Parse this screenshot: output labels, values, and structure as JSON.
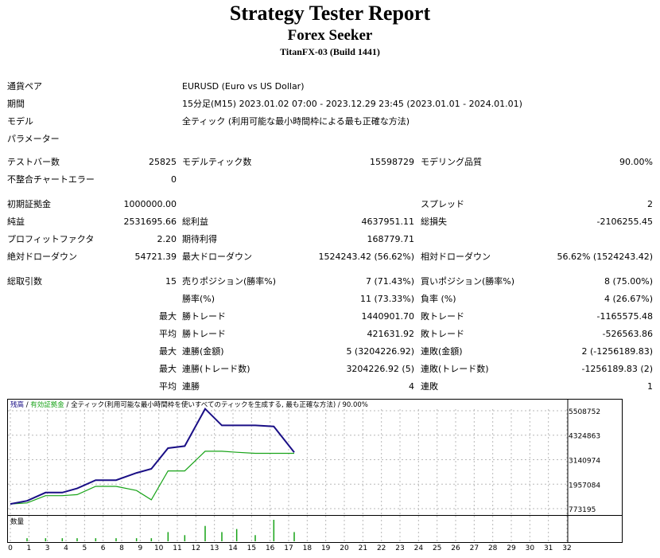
{
  "header": {
    "title": "Strategy Tester Report",
    "subtitle": "Forex Seeker",
    "server": "TitanFX-03 (Build 1441)"
  },
  "info": {
    "symbol_label": "通貨ペア",
    "symbol_value": "EURUSD (Euro vs US Dollar)",
    "period_label": "期間",
    "period_value": "15分足(M15) 2023.01.02 07:00 - 2023.12.29 23:45 (2023.01.01 - 2024.01.01)",
    "model_label": "モデル",
    "model_value": "全ティック (利用可能な最小時間枠による最も正確な方法)",
    "params_label": "パラメーター"
  },
  "stats": {
    "bars_label": "テストバー数",
    "bars_value": "25825",
    "ticks_label": "モデルティック数",
    "ticks_value": "15598729",
    "quality_label": "モデリング品質",
    "quality_value": "90.00%",
    "mismatch_label": "不整合チャートエラー",
    "mismatch_value": "0",
    "deposit_label": "初期証拠金",
    "deposit_value": "1000000.00",
    "spread_label": "スプレッド",
    "spread_value": "2",
    "net_label": "純益",
    "net_value": "2531695.66",
    "gross_profit_label": "総利益",
    "gross_profit_value": "4637951.11",
    "gross_loss_label": "総損失",
    "gross_loss_value": "-2106255.45",
    "pf_label": "プロフィットファクタ",
    "pf_value": "2.20",
    "expected_label": "期待利得",
    "expected_value": "168779.71",
    "abs_dd_label": "絶対ドローダウン",
    "abs_dd_value": "54721.39",
    "max_dd_label": "最大ドローダウン",
    "max_dd_value": "1524243.42 (56.62%)",
    "rel_dd_label": "相対ドローダウン",
    "rel_dd_value": "56.62% (1524243.42)"
  },
  "trades": {
    "total_label": "総取引数",
    "total_value": "15",
    "short_label": "売りポジション(勝率%)",
    "short_value": "7 (71.43%)",
    "long_label": "買いポジション(勝率%)",
    "long_value": "8 (75.00%)",
    "winrate_label": "勝率(%)",
    "winrate_value": "11 (73.33%)",
    "lossrate_label": "負率 (%)",
    "lossrate_value": "4 (26.67%)",
    "max1_label": "最大",
    "largest_win_label": "勝トレード",
    "largest_win_value": "1440901.70",
    "largest_loss_label": "敗トレード",
    "largest_loss_value": "-1165575.48",
    "avg1_label": "平均",
    "avg_win_label": "勝トレード",
    "avg_win_value": "421631.92",
    "avg_loss_label": "敗トレード",
    "avg_loss_value": "-526563.86",
    "max2_label": "最大",
    "cons_wins_amt_label": "連勝(金額)",
    "cons_wins_amt_value": "5 (3204226.92)",
    "cons_loss_amt_label": "連敗(金額)",
    "cons_loss_amt_value": "2 (-1256189.83)",
    "max3_label": "最大",
    "cons_wins_cnt_label": "連勝(トレード数)",
    "cons_wins_cnt_value": "3204226.92 (5)",
    "cons_loss_cnt_label": "連敗(トレード数)",
    "cons_loss_cnt_value": "-1256189.83 (2)",
    "avg2_label": "平均",
    "avg_cons_wins_label": "連勝",
    "avg_cons_wins_value": "4",
    "avg_cons_loss_label": "連敗",
    "avg_cons_loss_value": "1"
  },
  "legend": {
    "balance": "残高",
    "sep1": " / ",
    "equity": "有効証拠金",
    "sep2": " / ",
    "model": "全ティック(利用可能な最小時間枠を使いすべてのティックを生成する, 最も正確な方法)",
    "quality": " / 90.00%"
  },
  "volume_label": "数量",
  "colors": {
    "balance": "#1a0f86",
    "equity": "#17a317",
    "volume": "#17a317",
    "grid": "#b8b8b8"
  },
  "chart_data": {
    "type": "line",
    "y_ticks": [
      "5508752",
      "4324863",
      "3140974",
      "1957084",
      "773195"
    ],
    "x_ticks": [
      "0",
      "1",
      "3",
      "4",
      "5",
      "6",
      "8",
      "9",
      "10",
      "11",
      "12",
      "13",
      "14",
      "15",
      "16",
      "17",
      "18",
      "19",
      "20",
      "21",
      "22",
      "23",
      "24",
      "25",
      "26",
      "27",
      "28",
      "29",
      "30",
      "31",
      "32"
    ],
    "x_tick_positions": [
      0,
      1,
      2,
      3,
      4,
      5,
      6,
      7,
      8,
      9,
      10,
      11,
      12,
      13,
      14,
      15,
      16,
      17,
      18,
      19,
      20,
      21,
      22,
      23,
      24,
      25,
      26,
      27,
      28,
      29,
      30
    ],
    "ylim": [
      773195,
      5508752
    ],
    "series": [
      {
        "name": "残高",
        "x": [
          0,
          0.9,
          1.9,
          2.8,
          3.6,
          4.6,
          5.7,
          6.8,
          7.6,
          8.5,
          9.4,
          10.5,
          11.4,
          12.2,
          13.2,
          14.2,
          15.3
        ],
        "values": [
          1000000,
          1150000,
          1550000,
          1550000,
          1750000,
          2150000,
          2150000,
          2500000,
          2700000,
          3700000,
          3800000,
          5600000,
          4800000,
          4800000,
          4800000,
          4750000,
          3500000
        ]
      },
      {
        "name": "有効証拠金",
        "x": [
          0,
          0.9,
          1.9,
          2.8,
          3.6,
          4.6,
          5.7,
          6.8,
          7.6,
          8.5,
          9.4,
          10.5,
          11.4,
          12.2,
          13.2,
          14.2,
          15.3
        ],
        "values": [
          1000000,
          1050000,
          1400000,
          1400000,
          1450000,
          1850000,
          1850000,
          1650000,
          1200000,
          2600000,
          2600000,
          3550000,
          3550000,
          3500000,
          3450000,
          3450000,
          3450000
        ]
      }
    ],
    "volume": {
      "x": [
        0.9,
        1.9,
        2.8,
        3.6,
        4.6,
        5.7,
        6.8,
        7.6,
        8.5,
        9.4,
        10.5,
        11.4,
        12.2,
        13.2,
        14.2,
        15.3
      ],
      "values": [
        1,
        1,
        1,
        1,
        1,
        1,
        1,
        1,
        3,
        2,
        5,
        3,
        4,
        2,
        7,
        3
      ]
    }
  }
}
